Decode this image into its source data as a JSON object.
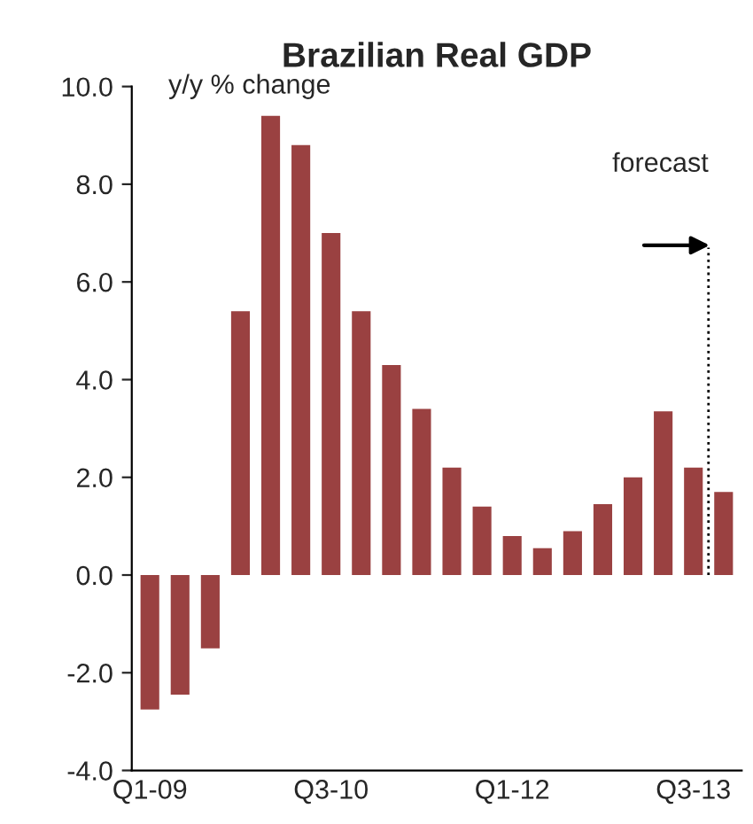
{
  "chart_data": {
    "type": "bar",
    "title": "Brazilian Real GDP",
    "ylabel": "y/y % change",
    "categories": [
      "Q1-09",
      null,
      null,
      null,
      null,
      null,
      "Q3-10",
      null,
      null,
      null,
      null,
      null,
      "Q1-12",
      null,
      null,
      null,
      null,
      null,
      "Q3-13",
      null
    ],
    "values": [
      -2.75,
      -2.45,
      -1.5,
      5.4,
      9.4,
      8.8,
      7.0,
      5.4,
      4.3,
      3.4,
      2.2,
      1.4,
      0.8,
      0.55,
      0.9,
      1.45,
      2.0,
      3.35,
      2.2,
      1.7
    ],
    "color": "#9a4141",
    "ylim": [
      -4,
      10
    ],
    "yticks": [
      {
        "value": -4,
        "label": "-4.0"
      },
      {
        "value": -2,
        "label": "-2.0"
      },
      {
        "value": 0,
        "label": "0.0"
      },
      {
        "value": 2,
        "label": "2.0"
      },
      {
        "value": 4,
        "label": "4.0"
      },
      {
        "value": 6,
        "label": "6.0"
      },
      {
        "value": 8,
        "label": "8.0"
      },
      {
        "value": 10,
        "label": "10.0"
      }
    ],
    "annotations": [
      "forecast"
    ],
    "grid": false
  }
}
